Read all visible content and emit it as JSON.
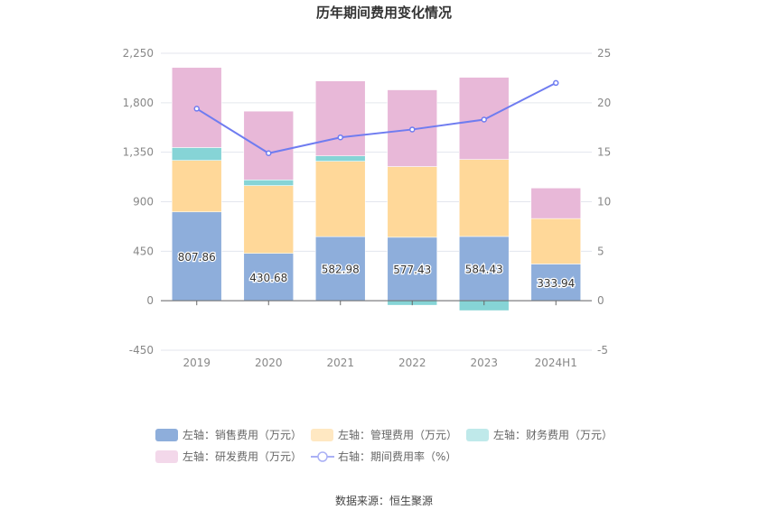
{
  "chart_data": {
    "type": "bar",
    "title": "历年期间费用变化情况",
    "categories": [
      "2019",
      "2020",
      "2021",
      "2022",
      "2023",
      "2024H1"
    ],
    "left_axis": {
      "ylim": [
        -450,
        2250
      ],
      "ticks": [
        "-450",
        "0",
        "450",
        "900",
        "1,350",
        "1,800",
        "2,250"
      ],
      "tick_values": [
        -450,
        0,
        450,
        900,
        1350,
        1800,
        2250
      ]
    },
    "right_axis": {
      "ylim": [
        -5,
        25
      ],
      "ticks": [
        "-5",
        "0",
        "5",
        "10",
        "15",
        "20",
        "25"
      ],
      "tick_values": [
        -5,
        0,
        5,
        10,
        15,
        20,
        25
      ]
    },
    "grid": true,
    "legend_placement": "bottom",
    "series": [
      {
        "name": "左轴：销售费用（万元）",
        "type": "bar",
        "stack": true,
        "color": "#8eaedb",
        "values": [
          807.86,
          430.68,
          582.98,
          577.43,
          584.43,
          333.94
        ],
        "labels": [
          "807.86",
          "430.68",
          "582.98",
          "577.43",
          "584.43",
          "333.94"
        ]
      },
      {
        "name": "左轴：管理费用（万元）",
        "type": "bar",
        "stack": true,
        "color": "#ffd899",
        "values": [
          468,
          616,
          685,
          642,
          700,
          413
        ]
      },
      {
        "name": "左轴：财务费用（万元）",
        "type": "bar",
        "stack": true,
        "color": "#86d4d6",
        "values": [
          117,
          52,
          49,
          -41,
          -90,
          0
        ]
      },
      {
        "name": "左轴：研发费用（万元）",
        "type": "bar",
        "stack": true,
        "color": "#e8b8d8",
        "values": [
          728,
          625,
          681,
          698,
          747,
          278
        ]
      },
      {
        "name": "右轴：期间费用率（%）",
        "type": "line",
        "axis": "right",
        "color": "#6f7cf0",
        "values": [
          19.4,
          14.9,
          16.5,
          17.3,
          18.3,
          22.0
        ]
      }
    ],
    "source": "数据来源：恒生聚源"
  }
}
